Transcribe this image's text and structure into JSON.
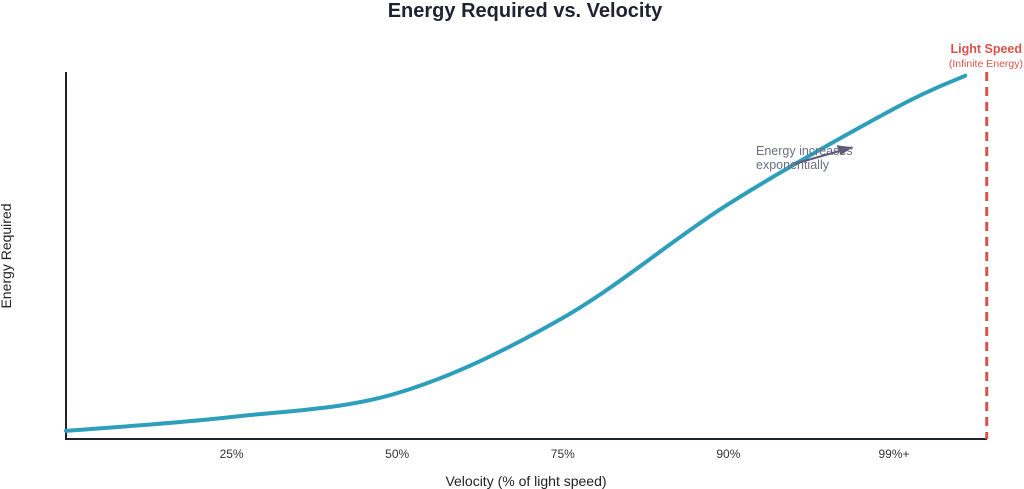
{
  "chart_data": {
    "type": "line",
    "title": "Energy Required vs. Velocity",
    "xlabel": "Velocity (% of light speed)",
    "ylabel": "Energy Required",
    "tick_labels": [
      "25%",
      "50%",
      "75%",
      "90%",
      "99%+"
    ],
    "tick_positions": [
      1,
      2,
      3,
      4,
      5
    ],
    "xlim": [
      0,
      5.6
    ],
    "ylim": [
      0,
      100
    ],
    "grid": false,
    "series": [
      {
        "name": "Energy",
        "color": "#2e9fbb",
        "x": [
          0,
          1,
          2,
          3,
          4,
          5,
          5.43
        ],
        "y": [
          2.2,
          6,
          12.5,
          33,
          64,
          90,
          99
        ]
      }
    ],
    "limit_line": {
      "x": 5.56,
      "label": "Light Speed",
      "sublabel": "(Infinite Energy)",
      "color": "#d9534a"
    },
    "annotation": {
      "line1": "Energy increases",
      "line2": "exponentially",
      "arrow_from": [
        4.4,
        75
      ],
      "arrow_to": [
        4.75,
        79.5
      ]
    }
  }
}
